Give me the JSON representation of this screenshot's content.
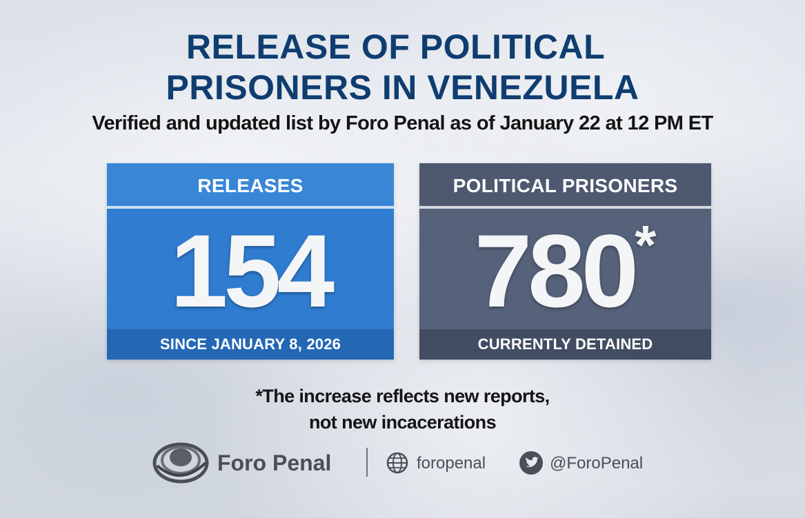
{
  "header": {
    "title_line1": "RELEASE OF POLITICAL",
    "title_line2": "PRISONERS IN VENEZUELA",
    "subtitle": "Verified and updated list by Foro Penal as of January 22 at 12 PM ET"
  },
  "cards": {
    "releases": {
      "label": "RELEASES",
      "value": "154",
      "caption": "SINCE JANUARY 8, 2026",
      "color": "#2f7cd0"
    },
    "prisoners": {
      "label": "POLITICAL PRISONERS",
      "value": "780",
      "marker": "*",
      "caption": "CURRENTLY DETAINED",
      "color": "#56617a"
    }
  },
  "note": {
    "line1": "*The increase reflects new reports,",
    "line2": "not new incacerations"
  },
  "footer": {
    "brand": "Foro Penal",
    "website": "foropenal",
    "twitter": "@ForoPenal",
    "icons": [
      "foro-penal-logo-icon",
      "globe-icon",
      "twitter-bird-icon"
    ]
  },
  "colors": {
    "title": "#0f3d70",
    "text": "#141414",
    "footer_text": "#4a4e57"
  }
}
